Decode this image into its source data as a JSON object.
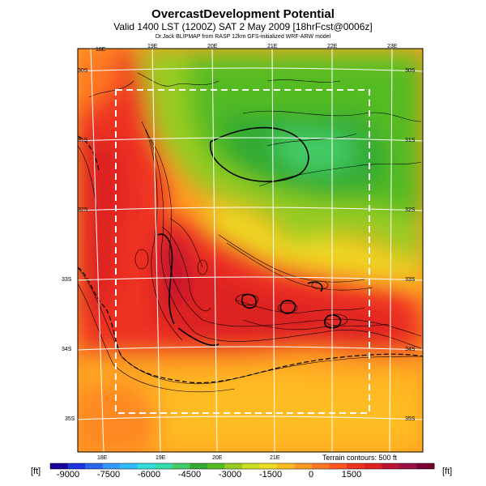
{
  "title": "OvercastDevelopment Potential",
  "subtitle": "Valid 1400 LST (1200Z) SAT 2 May 2009 [18hrFcst@0006z]",
  "credit": "Dr.Jack BLIPMAP from RASP 12km GFS-initialized WRF-ARW model",
  "terrain_note": "Terrain contours: 500 ft",
  "unit_label": "[ft]",
  "lon_labels_top": [
    "18E",
    "19E",
    "20E",
    "21E",
    "22E",
    "23E"
  ],
  "lon_labels_bottom": [
    "18E",
    "19E",
    "20E",
    "21E"
  ],
  "lat_labels_left": [
    "30S",
    "31S",
    "32S",
    "33S",
    "34S",
    "35S"
  ],
  "lat_labels_right": [
    "30S",
    "31S",
    "32S",
    "33S",
    "34S",
    "35S"
  ],
  "colorbar_ticks": [
    "-9000",
    "-7500",
    "-6000",
    "-4500",
    "-3000",
    "-1500",
    "0",
    "1500"
  ],
  "colorbar_colors": [
    "#1a0099",
    "#1f33dd",
    "#2a66ee",
    "#3399ff",
    "#33bbff",
    "#33dddd",
    "#33ddaa",
    "#44cc66",
    "#33aa33",
    "#55bb22",
    "#99cc22",
    "#ccdd22",
    "#eedd22",
    "#ffbb22",
    "#ff9922",
    "#ff7722",
    "#ff5522",
    "#ee3322",
    "#dd2222",
    "#bb1133",
    "#991144",
    "#770033"
  ]
}
